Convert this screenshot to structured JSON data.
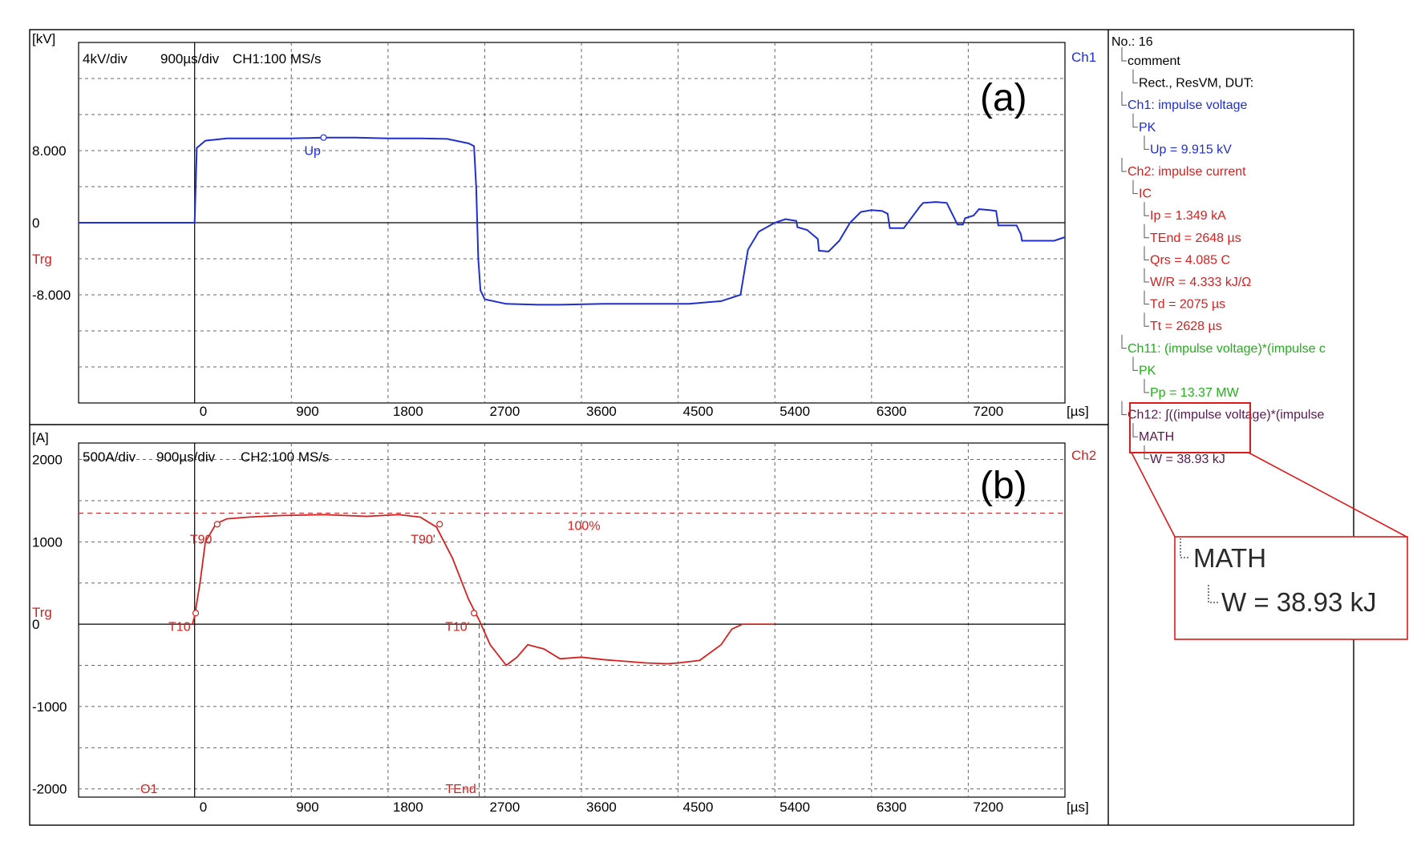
{
  "panel_a": {
    "label": "(a)",
    "unit_label": "[kV]",
    "header": [
      "4kV/div",
      "900µs/div",
      "CH1:100 MS/s"
    ],
    "channel_tag": "Ch1",
    "trigger_label": "Trg",
    "marker_label": "Up",
    "color": "#1f2fd0"
  },
  "panel_b": {
    "label": "(b)",
    "unit_label": "[A]",
    "header": [
      "500A/div",
      "900µs/div",
      "CH2:100 MS/s"
    ],
    "channel_tag": "Ch2",
    "trigger_label": "Trg",
    "level_label": "100%",
    "markers": [
      "T10",
      "T90",
      "T90'",
      "T10'",
      "TEnd",
      "O1"
    ],
    "color": "#d62020"
  },
  "shared": {
    "x_unit": "[µs]"
  },
  "tree": {
    "title": "No.: 16",
    "items": [
      {
        "text": "comment",
        "depth": 0,
        "color": "#000000"
      },
      {
        "text": "Rect., ResVM, DUT:",
        "depth": 1,
        "color": "#000000"
      },
      {
        "text": "Ch1: impulse voltage",
        "depth": 0,
        "color": "#1f2fd0"
      },
      {
        "text": "PK",
        "depth": 1,
        "color": "#1f2fd0"
      },
      {
        "text": "Up = 9.915 kV",
        "depth": 2,
        "color": "#1f2fd0"
      },
      {
        "text": "Ch2: impulse current",
        "depth": 0,
        "color": "#d62020"
      },
      {
        "text": "IC",
        "depth": 1,
        "color": "#d62020"
      },
      {
        "text": "Ip = 1.349 kA",
        "depth": 2,
        "color": "#d62020"
      },
      {
        "text": "TEnd = 2648 µs",
        "depth": 2,
        "color": "#d62020"
      },
      {
        "text": "Qrs = 4.085 C",
        "depth": 2,
        "color": "#d62020"
      },
      {
        "text": "W/R = 4.333 kJ/Ω",
        "depth": 2,
        "color": "#d62020"
      },
      {
        "text": "Td = 2075 µs",
        "depth": 2,
        "color": "#d62020"
      },
      {
        "text": "Tt = 2628 µs",
        "depth": 2,
        "color": "#d62020"
      },
      {
        "text": "Ch11: (impulse voltage)*(impulse c",
        "depth": 0,
        "color": "#22b01a"
      },
      {
        "text": "PK",
        "depth": 1,
        "color": "#22b01a"
      },
      {
        "text": "Pp = 13.37 MW",
        "depth": 2,
        "color": "#22b01a"
      },
      {
        "text": "Ch12: ∫((impulse voltage)*(impulse",
        "depth": 0,
        "color": "#5a1850"
      },
      {
        "text": "MATH",
        "depth": 1,
        "color": "#5a1850"
      },
      {
        "text": "W = 38.93 kJ",
        "depth": 2,
        "color": "#5a1850"
      }
    ],
    "zoom": {
      "math": "MATH",
      "energy": "W = 38.93 kJ"
    },
    "highlight_color": "#e01818"
  },
  "chart_data": [
    {
      "type": "line",
      "xlim": [
        -1080,
        8100
      ],
      "ylim": [
        -20000,
        20000
      ],
      "x_ticks": [
        0,
        900,
        1800,
        2700,
        3600,
        4500,
        5400,
        6300,
        7200
      ],
      "y_tick_labels": [
        {
          "value": 8000,
          "label": "8.000"
        },
        {
          "value": 0,
          "label": "0"
        },
        {
          "value": -8000,
          "label": "-8.000"
        }
      ],
      "grid": true,
      "series": [
        {
          "x": [
            -1080,
            -300,
            -20,
            0,
            20,
            100,
            300,
            600,
            900,
            1200,
            1500,
            1800,
            2100,
            2350,
            2550,
            2600,
            2620,
            2640,
            2660,
            2700,
            2900,
            3200,
            3400,
            3800,
            4200,
            4600,
            4900,
            5080,
            5150,
            5250,
            5400,
            5500,
            5600,
            5610,
            5700,
            5800,
            5810,
            5900,
            6000,
            6100,
            6200,
            6300,
            6400,
            6450,
            6470,
            6600,
            6700,
            6750,
            6780,
            6900,
            7000,
            7100,
            7150,
            7170,
            7250,
            7300,
            7400,
            7460,
            7480,
            7550,
            7650,
            7690,
            7700,
            7800,
            8000,
            8100
          ],
          "y": [
            0,
            0,
            0,
            0,
            8300,
            9100,
            9350,
            9350,
            9350,
            9450,
            9450,
            9350,
            9350,
            9300,
            8800,
            8500,
            4000,
            -4000,
            -7500,
            -8500,
            -9000,
            -9100,
            -9100,
            -9000,
            -9000,
            -9000,
            -8700,
            -8000,
            -3000,
            -1000,
            0,
            400,
            200,
            -500,
            -800,
            -1800,
            -3100,
            -3200,
            -2000,
            0,
            1200,
            1400,
            1300,
            1000,
            -600,
            -600,
            1000,
            1800,
            2200,
            2300,
            2200,
            -200,
            -200,
            500,
            800,
            1500,
            1400,
            1300,
            -300,
            -300,
            -300,
            -1300,
            -2000,
            -2000,
            -2000,
            -1600
          ]
        }
      ]
    },
    {
      "type": "line",
      "xlim": [
        -1080,
        8100
      ],
      "ylim": [
        -2100,
        2200
      ],
      "x_ticks": [
        0,
        900,
        1800,
        2700,
        3600,
        4500,
        5400,
        6300,
        7200
      ],
      "y_tick_labels": [
        {
          "value": 2000,
          "label": "2000"
        },
        {
          "value": 1000,
          "label": "1000"
        },
        {
          "value": 0,
          "label": "0"
        },
        {
          "value": -1000,
          "label": "-1000"
        },
        {
          "value": -2000,
          "label": "-2000"
        }
      ],
      "grid": true,
      "reference_level": 1349,
      "tend_x": 2648,
      "series": [
        {
          "x": [
            -20,
            0,
            50,
            100,
            200,
            300,
            500,
            800,
            1200,
            1600,
            1900,
            2100,
            2250,
            2400,
            2550,
            2648,
            2750,
            2900,
            3000,
            3100,
            3250,
            3400,
            3600,
            3800,
            4000,
            4200,
            4400,
            4500,
            4700,
            4900,
            5000,
            5100,
            5200,
            5300,
            5400
          ],
          "y": [
            0,
            100,
            500,
            1000,
            1220,
            1280,
            1300,
            1320,
            1330,
            1310,
            1330,
            1300,
            1180,
            800,
            300,
            50,
            -250,
            -500,
            -400,
            -250,
            -300,
            -420,
            -400,
            -430,
            -450,
            -470,
            -480,
            -470,
            -440,
            -250,
            -60,
            0,
            0,
            0,
            0
          ]
        }
      ],
      "points": [
        {
          "label": "T10",
          "x": 10,
          "y": 135
        },
        {
          "label": "T90",
          "x": 210,
          "y": 1214
        },
        {
          "label": "T90'",
          "x": 2280,
          "y": 1214
        },
        {
          "label": "T10'",
          "x": 2600,
          "y": 135
        }
      ]
    }
  ]
}
